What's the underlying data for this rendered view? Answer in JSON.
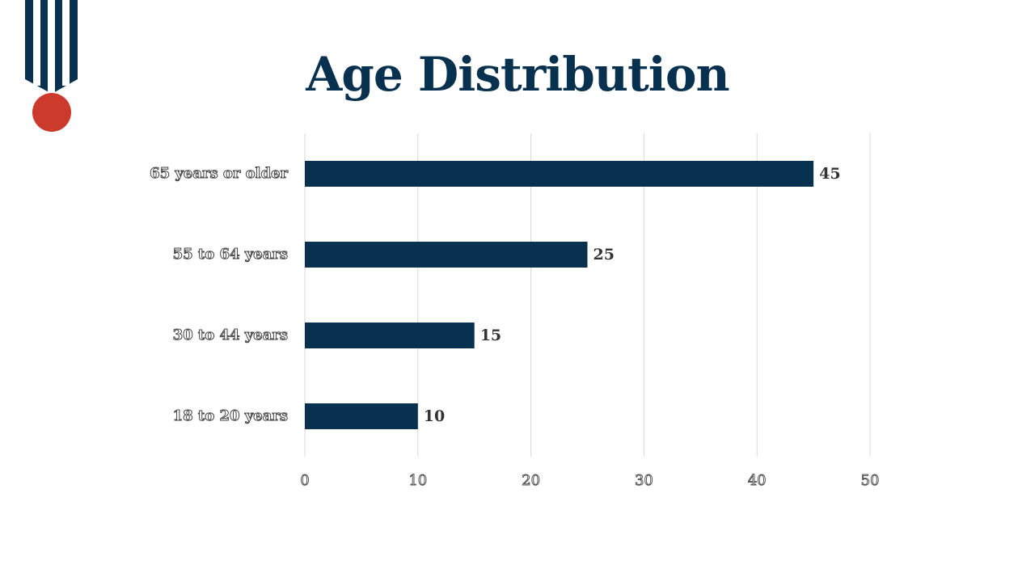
{
  "colors": {
    "primary": "#08304f",
    "accent": "#cc3a2c",
    "grid": "#d9d9d9",
    "value_text": "#333333"
  },
  "chart_data": {
    "type": "bar",
    "orientation": "horizontal",
    "title": "Age Distribution",
    "categories": [
      "65 years or older",
      "55 to 64 years",
      "30 to 44 years",
      "18 to 20 years"
    ],
    "values": [
      45,
      25,
      15,
      10
    ],
    "xlim": [
      0,
      50
    ],
    "xticks": [
      0,
      10,
      20,
      30,
      40,
      50
    ],
    "grid": true,
    "data_labels": true,
    "legend": "none"
  }
}
